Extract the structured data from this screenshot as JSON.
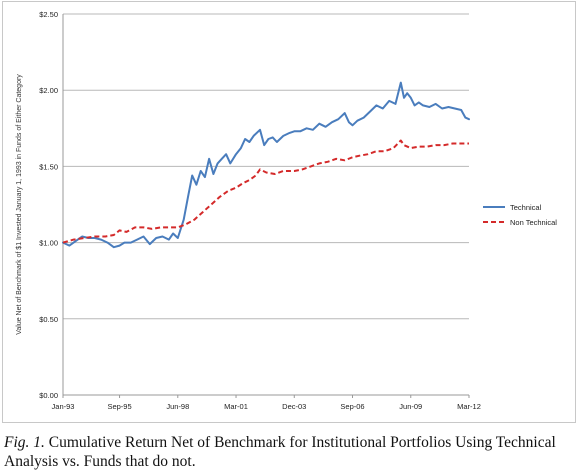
{
  "chart_data": {
    "type": "line",
    "ylabel": "Value Net of Benchmark of $1 Invested January 1, 1993 in Funds of Either Category",
    "xlabel": "",
    "ylim": [
      0,
      2.5
    ],
    "yticks": [
      "$0.00",
      "$0.50",
      "$1.00",
      "$1.50",
      "$2.00",
      "$2.50"
    ],
    "ytick_values": [
      0,
      0.5,
      1.0,
      1.5,
      2.0,
      2.5
    ],
    "xlim": [
      1993.0,
      2012.17
    ],
    "xticks": [
      "Jan-93",
      "Sep-95",
      "Jun-98",
      "Mar-01",
      "Dec-03",
      "Sep-06",
      "Jun-09",
      "Mar-12"
    ],
    "xtick_values": [
      1993.0,
      1995.67,
      1998.42,
      2001.17,
      2003.92,
      2006.67,
      2009.42,
      2012.17
    ],
    "grid": true,
    "legend_position": "right",
    "series": [
      {
        "name": "Technical",
        "color": "#4a7dbd",
        "style": "solid",
        "x": [
          1993.0,
          1993.3,
          1993.6,
          1993.9,
          1994.2,
          1994.5,
          1994.8,
          1995.1,
          1995.4,
          1995.67,
          1995.9,
          1996.2,
          1996.5,
          1996.8,
          1997.1,
          1997.4,
          1997.7,
          1998.0,
          1998.2,
          1998.42,
          1998.7,
          1998.9,
          1999.1,
          1999.3,
          1999.5,
          1999.7,
          1999.9,
          2000.1,
          2000.3,
          2000.5,
          2000.7,
          2000.9,
          2001.17,
          2001.4,
          2001.6,
          2001.8,
          2002.0,
          2002.3,
          2002.5,
          2002.7,
          2002.9,
          2003.1,
          2003.4,
          2003.7,
          2003.92,
          2004.2,
          2004.5,
          2004.8,
          2005.1,
          2005.4,
          2005.7,
          2006.0,
          2006.3,
          2006.5,
          2006.67,
          2006.9,
          2007.2,
          2007.5,
          2007.8,
          2008.1,
          2008.4,
          2008.7,
          2008.95,
          2009.1,
          2009.25,
          2009.42,
          2009.6,
          2009.8,
          2010.0,
          2010.3,
          2010.6,
          2010.9,
          2011.2,
          2011.5,
          2011.8,
          2012.0,
          2012.17
        ],
        "values": [
          1.0,
          0.98,
          1.01,
          1.04,
          1.03,
          1.03,
          1.02,
          1.0,
          0.97,
          0.98,
          1.0,
          1.0,
          1.02,
          1.04,
          0.99,
          1.03,
          1.04,
          1.02,
          1.06,
          1.03,
          1.15,
          1.3,
          1.44,
          1.38,
          1.47,
          1.43,
          1.55,
          1.45,
          1.52,
          1.55,
          1.58,
          1.52,
          1.58,
          1.62,
          1.68,
          1.66,
          1.7,
          1.74,
          1.64,
          1.68,
          1.69,
          1.66,
          1.7,
          1.72,
          1.73,
          1.73,
          1.75,
          1.74,
          1.78,
          1.76,
          1.79,
          1.81,
          1.85,
          1.79,
          1.77,
          1.8,
          1.82,
          1.86,
          1.9,
          1.88,
          1.93,
          1.91,
          2.05,
          1.95,
          1.98,
          1.95,
          1.9,
          1.92,
          1.9,
          1.89,
          1.91,
          1.88,
          1.89,
          1.88,
          1.87,
          1.82,
          1.81
        ]
      },
      {
        "name": "Non Technical",
        "color": "#d42a2a",
        "style": "dashed",
        "x": [
          1993.0,
          1993.5,
          1994.0,
          1994.5,
          1995.0,
          1995.4,
          1995.67,
          1996.0,
          1996.4,
          1996.8,
          1997.2,
          1997.6,
          1998.0,
          1998.42,
          1998.8,
          1999.2,
          1999.6,
          2000.0,
          2000.4,
          2000.8,
          2001.17,
          2001.5,
          2001.8,
          2002.1,
          2002.3,
          2002.6,
          2003.0,
          2003.4,
          2003.92,
          2004.3,
          2004.7,
          2005.1,
          2005.5,
          2005.9,
          2006.3,
          2006.67,
          2007.0,
          2007.4,
          2007.8,
          2008.2,
          2008.6,
          2008.95,
          2009.1,
          2009.42,
          2009.8,
          2010.2,
          2010.6,
          2011.0,
          2011.4,
          2011.8,
          2012.17
        ],
        "values": [
          1.0,
          1.02,
          1.03,
          1.04,
          1.04,
          1.05,
          1.08,
          1.07,
          1.1,
          1.1,
          1.09,
          1.1,
          1.1,
          1.1,
          1.12,
          1.15,
          1.2,
          1.25,
          1.3,
          1.34,
          1.36,
          1.39,
          1.41,
          1.44,
          1.48,
          1.46,
          1.45,
          1.47,
          1.47,
          1.48,
          1.5,
          1.52,
          1.53,
          1.55,
          1.54,
          1.56,
          1.57,
          1.58,
          1.6,
          1.6,
          1.62,
          1.67,
          1.64,
          1.62,
          1.63,
          1.63,
          1.64,
          1.64,
          1.65,
          1.65,
          1.65
        ]
      }
    ]
  },
  "caption": {
    "label": "Fig. 1.",
    "text": " Cumulative Return Net of Benchmark for Institutional Portfolios Using Technical Analysis vs. Funds that do not."
  }
}
